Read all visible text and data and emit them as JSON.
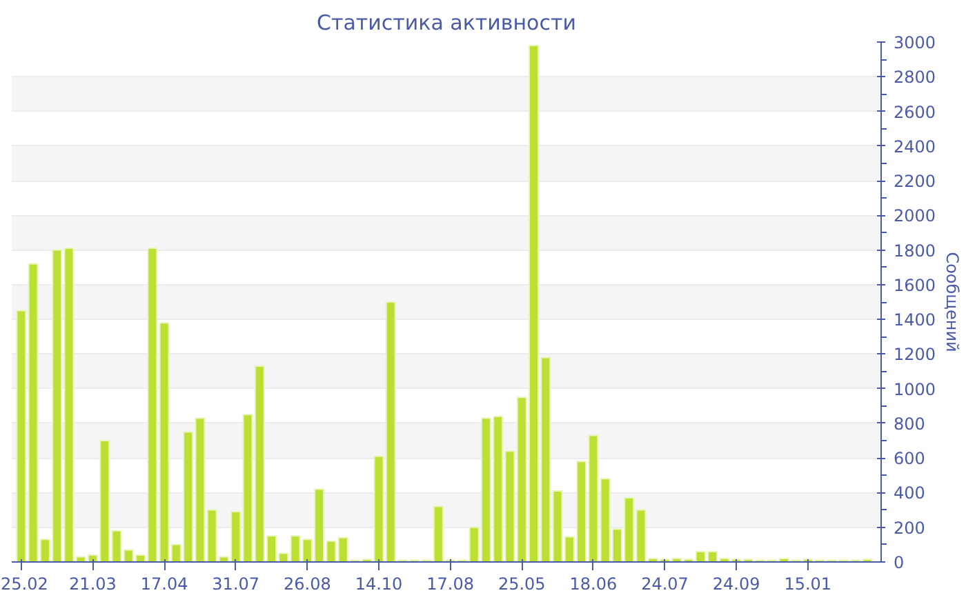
{
  "chart_data": {
    "type": "bar",
    "title": "Статистика активности",
    "ylabel": "Сообщений",
    "color": "#bbe033",
    "categories": [
      "25.02",
      null,
      null,
      null,
      null,
      null,
      "21.03",
      null,
      null,
      null,
      null,
      null,
      "17.04",
      null,
      null,
      null,
      null,
      null,
      "31.07",
      null,
      null,
      null,
      null,
      null,
      "26.08",
      null,
      null,
      null,
      null,
      null,
      "14.10",
      null,
      null,
      null,
      null,
      null,
      "17.08",
      null,
      null,
      null,
      null,
      null,
      "25.05",
      null,
      null,
      null,
      null,
      null,
      "18.06",
      null,
      null,
      null,
      null,
      null,
      "24.07",
      null,
      null,
      null,
      null,
      null,
      "24.09",
      null,
      null,
      null,
      null,
      null,
      "15.01",
      null,
      null,
      null,
      null,
      null
    ],
    "values": [
      1450,
      1720,
      130,
      1800,
      1810,
      30,
      40,
      700,
      180,
      70,
      40,
      1810,
      1380,
      100,
      750,
      830,
      300,
      30,
      290,
      850,
      1130,
      150,
      50,
      150,
      130,
      420,
      120,
      140,
      10,
      15,
      610,
      1500,
      10,
      10,
      10,
      320,
      10,
      10,
      200,
      830,
      840,
      640,
      950,
      2980,
      1180,
      410,
      145,
      580,
      730,
      480,
      190,
      370,
      300,
      20,
      15,
      20,
      15,
      60,
      60,
      20,
      15,
      15,
      10,
      10,
      20,
      10,
      15,
      10,
      10,
      10,
      10,
      15
    ],
    "ylim": [
      0,
      3000
    ],
    "yticks": [
      0,
      200,
      400,
      600,
      800,
      1000,
      1200,
      1400,
      1600,
      1800,
      2000,
      2200,
      2400,
      2600,
      2800,
      3000
    ],
    "grid": "y"
  }
}
